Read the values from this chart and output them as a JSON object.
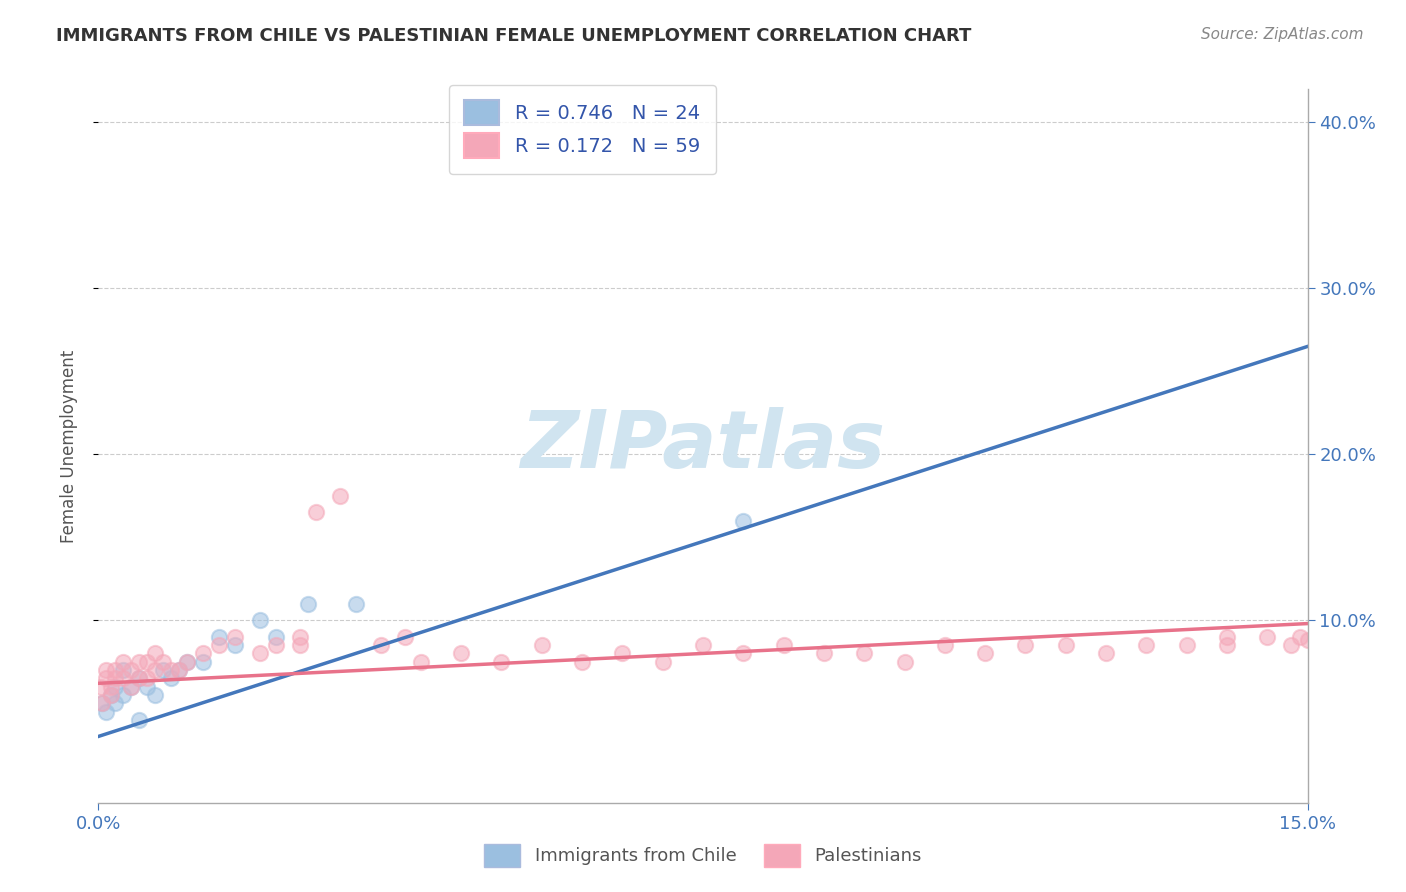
{
  "title": "IMMIGRANTS FROM CHILE VS PALESTINIAN FEMALE UNEMPLOYMENT CORRELATION CHART",
  "source_text": "Source: ZipAtlas.com",
  "ylabel": "Female Unemployment",
  "xlim": [
    0.0,
    0.15
  ],
  "ylim": [
    -0.01,
    0.42
  ],
  "x_ticks": [
    0.0,
    0.15
  ],
  "x_tick_labels": [
    "0.0%",
    "15.0%"
  ],
  "y_tick_vals": [
    0.1,
    0.2,
    0.3,
    0.4
  ],
  "y_tick_labels": [
    "10.0%",
    "20.0%",
    "30.0%",
    "40.0%"
  ],
  "blue_color": "#9BBFE0",
  "pink_color": "#F4A7B8",
  "blue_line_color": "#4477BB",
  "pink_line_color": "#E8728A",
  "watermark_color": "#D0E4F0",
  "legend_r1": "R = 0.746",
  "legend_n1": "N = 24",
  "legend_r2": "R = 0.172",
  "legend_n2": "N = 59",
  "legend_label1": "Immigrants from Chile",
  "legend_label2": "Palestinians",
  "blue_scatter_x": [
    0.0005,
    0.001,
    0.0015,
    0.002,
    0.002,
    0.003,
    0.003,
    0.004,
    0.005,
    0.005,
    0.006,
    0.007,
    0.008,
    0.009,
    0.01,
    0.011,
    0.013,
    0.015,
    0.017,
    0.02,
    0.022,
    0.026,
    0.032,
    0.08
  ],
  "blue_scatter_y": [
    0.05,
    0.045,
    0.055,
    0.06,
    0.05,
    0.055,
    0.07,
    0.06,
    0.065,
    0.04,
    0.06,
    0.055,
    0.07,
    0.065,
    0.07,
    0.075,
    0.075,
    0.09,
    0.085,
    0.1,
    0.09,
    0.11,
    0.11,
    0.16
  ],
  "pink_scatter_x": [
    0.0003,
    0.0005,
    0.001,
    0.001,
    0.0015,
    0.0015,
    0.002,
    0.002,
    0.003,
    0.003,
    0.004,
    0.004,
    0.005,
    0.005,
    0.006,
    0.006,
    0.007,
    0.007,
    0.008,
    0.009,
    0.01,
    0.011,
    0.013,
    0.015,
    0.017,
    0.02,
    0.022,
    0.025,
    0.025,
    0.027,
    0.03,
    0.035,
    0.038,
    0.04,
    0.045,
    0.05,
    0.055,
    0.06,
    0.065,
    0.07,
    0.075,
    0.08,
    0.085,
    0.09,
    0.095,
    0.1,
    0.105,
    0.11,
    0.115,
    0.12,
    0.125,
    0.13,
    0.135,
    0.14,
    0.14,
    0.145,
    0.148,
    0.149,
    0.15
  ],
  "pink_scatter_y": [
    0.06,
    0.05,
    0.065,
    0.07,
    0.055,
    0.06,
    0.065,
    0.07,
    0.065,
    0.075,
    0.06,
    0.07,
    0.065,
    0.075,
    0.065,
    0.075,
    0.07,
    0.08,
    0.075,
    0.07,
    0.07,
    0.075,
    0.08,
    0.085,
    0.09,
    0.08,
    0.085,
    0.085,
    0.09,
    0.165,
    0.175,
    0.085,
    0.09,
    0.075,
    0.08,
    0.075,
    0.085,
    0.075,
    0.08,
    0.075,
    0.085,
    0.08,
    0.085,
    0.08,
    0.08,
    0.075,
    0.085,
    0.08,
    0.085,
    0.085,
    0.08,
    0.085,
    0.085,
    0.09,
    0.085,
    0.09,
    0.085,
    0.09,
    0.088
  ],
  "blue_line_x": [
    0.0,
    0.15
  ],
  "blue_line_y": [
    0.03,
    0.265
  ],
  "pink_line_x": [
    0.0,
    0.15
  ],
  "pink_line_y": [
    0.062,
    0.098
  ],
  "grid_color": "#CCCCCC",
  "spine_color": "#AAAAAA",
  "tick_color": "#4477BB",
  "title_fontsize": 13,
  "tick_fontsize": 13,
  "ylabel_fontsize": 12,
  "legend_fontsize": 14,
  "source_fontsize": 11
}
